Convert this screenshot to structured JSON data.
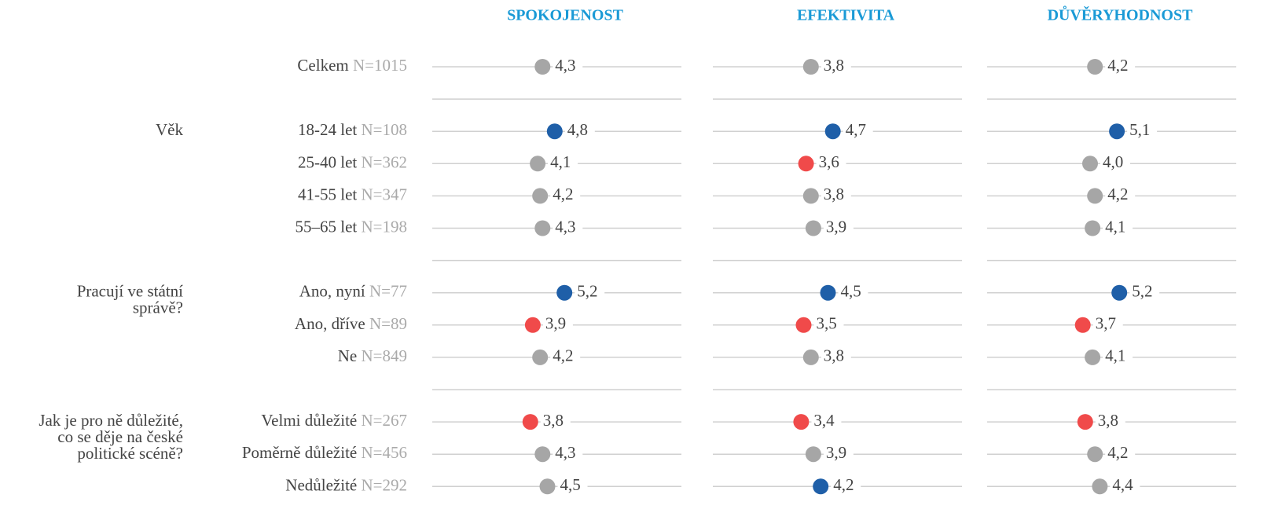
{
  "chart_data": {
    "type": "dot",
    "xlim": [
      0,
      10
    ],
    "sections": [
      {
        "rows": [
          {
            "category": "Celkem",
            "n": "N=1015"
          }
        ]
      },
      {
        "label": [
          "Věk"
        ],
        "rows": [
          {
            "category": "18-24 let",
            "n": "N=108"
          },
          {
            "category": "25-40 let",
            "n": "N=362"
          },
          {
            "category": "41-55 let",
            "n": "N=347"
          },
          {
            "category": "55–65 let",
            "n": "N=198"
          }
        ]
      },
      {
        "label": [
          "Pracují ve státní",
          "správě?"
        ],
        "rows": [
          {
            "category": "Ano, nyní",
            "n": "N=77"
          },
          {
            "category": "Ano, dříve",
            "n": "N=89"
          },
          {
            "category": "Ne",
            "n": "N=849"
          }
        ]
      },
      {
        "label": [
          "Jak je pro ně důležité,",
          "co se děje na české",
          "politické scéně?"
        ],
        "rows": [
          {
            "category": "Velmi důležité",
            "n": "N=267"
          },
          {
            "category": "Poměrně důležité",
            "n": "N=456"
          },
          {
            "category": "Nedůležité",
            "n": "N=292"
          }
        ]
      }
    ],
    "series": [
      {
        "name": "SPOKOJENOST",
        "values": [
          4.3,
          4.8,
          4.1,
          4.2,
          4.3,
          5.2,
          3.9,
          4.2,
          3.8,
          4.3,
          4.5
        ],
        "value_labels": [
          "4,3",
          "4,8",
          "4,1",
          "4,2",
          "4,3",
          "5,2",
          "3,9",
          "4,2",
          "3,8",
          "4,3",
          "4,5"
        ],
        "colors": [
          "#a6a6a6",
          "#1f5fa8",
          "#a6a6a6",
          "#a6a6a6",
          "#a6a6a6",
          "#1f5fa8",
          "#f04a4a",
          "#a6a6a6",
          "#f04a4a",
          "#a6a6a6",
          "#a6a6a6"
        ]
      },
      {
        "name": "EFEKTIVITA",
        "values": [
          3.8,
          4.7,
          3.6,
          3.8,
          3.9,
          4.5,
          3.5,
          3.8,
          3.4,
          3.9,
          4.2
        ],
        "value_labels": [
          "3,8",
          "4,7",
          "3,6",
          "3,8",
          "3,9",
          "4,5",
          "3,5",
          "3,8",
          "3,4",
          "3,9",
          "4,2"
        ],
        "colors": [
          "#a6a6a6",
          "#1f5fa8",
          "#f04a4a",
          "#a6a6a6",
          "#a6a6a6",
          "#1f5fa8",
          "#f04a4a",
          "#a6a6a6",
          "#f04a4a",
          "#a6a6a6",
          "#1f5fa8"
        ]
      },
      {
        "name": "DŮVĚRYHODNOST",
        "values": [
          4.2,
          5.1,
          4.0,
          4.2,
          4.1,
          5.2,
          3.7,
          4.1,
          3.8,
          4.2,
          4.4
        ],
        "value_labels": [
          "4,2",
          "5,1",
          "4,0",
          "4,2",
          "4,1",
          "5,2",
          "3,7",
          "4,1",
          "3,8",
          "4,2",
          "4,4"
        ],
        "colors": [
          "#a6a6a6",
          "#1f5fa8",
          "#a6a6a6",
          "#a6a6a6",
          "#a6a6a6",
          "#1f5fa8",
          "#f04a4a",
          "#a6a6a6",
          "#f04a4a",
          "#a6a6a6",
          "#a6a6a6"
        ]
      }
    ]
  }
}
